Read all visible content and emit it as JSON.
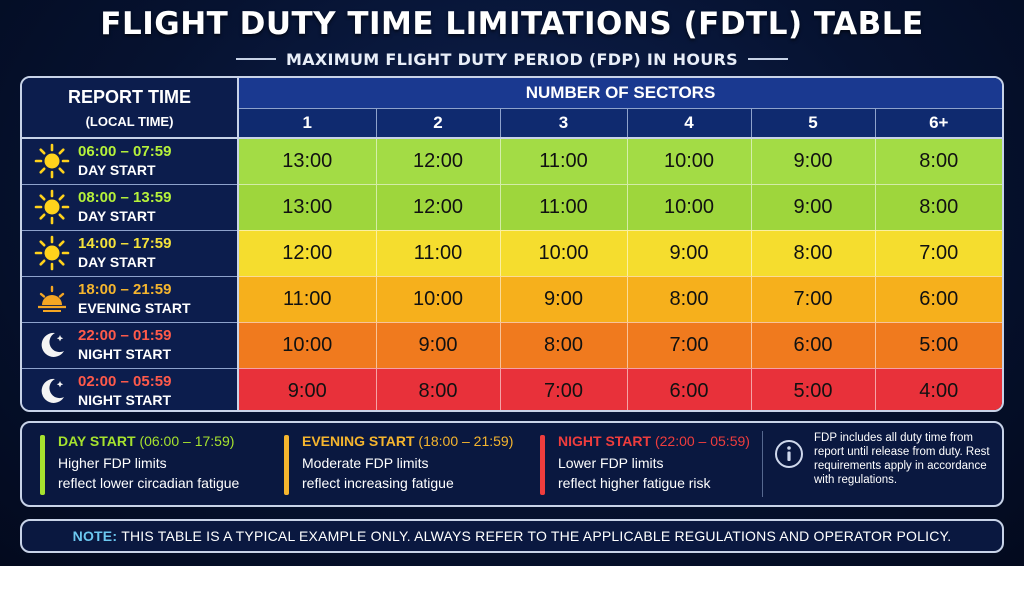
{
  "title": "FLIGHT DUTY TIME LIMITATIONS (FDTL) TABLE",
  "subtitle": "MAXIMUM FLIGHT DUTY PERIOD (FDP) IN HOURS",
  "table": {
    "report_header": "REPORT TIME",
    "report_subheader": "(LOCAL TIME)",
    "sectors_header": "NUMBER OF SECTORS",
    "sector_columns": [
      "1",
      "2",
      "3",
      "4",
      "5",
      "6+"
    ],
    "rows": [
      {
        "icon": "sun-icon",
        "range": "06:00 – 07:59",
        "label": "DAY START",
        "range_color": "#b6f23a",
        "row_color": "#a3dc45",
        "values": [
          "13:00",
          "12:00",
          "11:00",
          "10:00",
          "9:00",
          "8:00"
        ]
      },
      {
        "icon": "sun-icon",
        "range": "08:00 – 13:59",
        "label": "DAY START",
        "range_color": "#b6f23a",
        "row_color": "#9ed63c",
        "values": [
          "13:00",
          "12:00",
          "11:00",
          "10:00",
          "9:00",
          "8:00"
        ]
      },
      {
        "icon": "sun-icon",
        "range": "14:00 – 17:59",
        "label": "DAY START",
        "range_color": "#f5e23a",
        "row_color": "#f5dd2e",
        "values": [
          "12:00",
          "11:00",
          "10:00",
          "9:00",
          "8:00",
          "7:00"
        ]
      },
      {
        "icon": "sunset-icon",
        "range": "18:00 – 21:59",
        "label": "EVENING START",
        "range_color": "#f5b52e",
        "row_color": "#f6b01c",
        "values": [
          "11:00",
          "10:00",
          "9:00",
          "8:00",
          "7:00",
          "6:00"
        ]
      },
      {
        "icon": "moon-icon",
        "range": "22:00 – 01:59",
        "label": "NIGHT START",
        "range_color": "#ff5a4a",
        "row_color": "#f07a1e",
        "values": [
          "10:00",
          "9:00",
          "8:00",
          "7:00",
          "6:00",
          "5:00"
        ]
      },
      {
        "icon": "moon-icon",
        "range": "02:00 – 05:59",
        "label": "NIGHT START",
        "range_color": "#ff5a4a",
        "row_color": "#e8313a",
        "values": [
          "9:00",
          "8:00",
          "7:00",
          "6:00",
          "5:00",
          "4:00"
        ]
      }
    ]
  },
  "legend": [
    {
      "title": "DAY START",
      "paren": "(06:00 – 17:59)",
      "color": "#a6e22e",
      "line1": "Higher FDP limits",
      "line2": "reflect lower circadian fatigue"
    },
    {
      "title": "EVENING START",
      "paren": "(18:00 – 21:59)",
      "color": "#f5b52e",
      "line1": "Moderate FDP limits",
      "line2": "reflect increasing fatigue"
    },
    {
      "title": "NIGHT START",
      "paren": "(22:00 – 05:59)",
      "color": "#ef3d3d",
      "line1": "Lower FDP limits",
      "line2": "reflect higher fatigue risk"
    }
  ],
  "info": {
    "icon": "info-icon",
    "text": "FDP includes all duty time from report until release from duty. Rest requirements apply in accordance with regulations."
  },
  "note": {
    "label": "NOTE:",
    "text": "THIS TABLE IS A TYPICAL EXAMPLE ONLY. ALWAYS REFER TO THE APPLICABLE REGULATIONS AND OPERATOR POLICY."
  }
}
